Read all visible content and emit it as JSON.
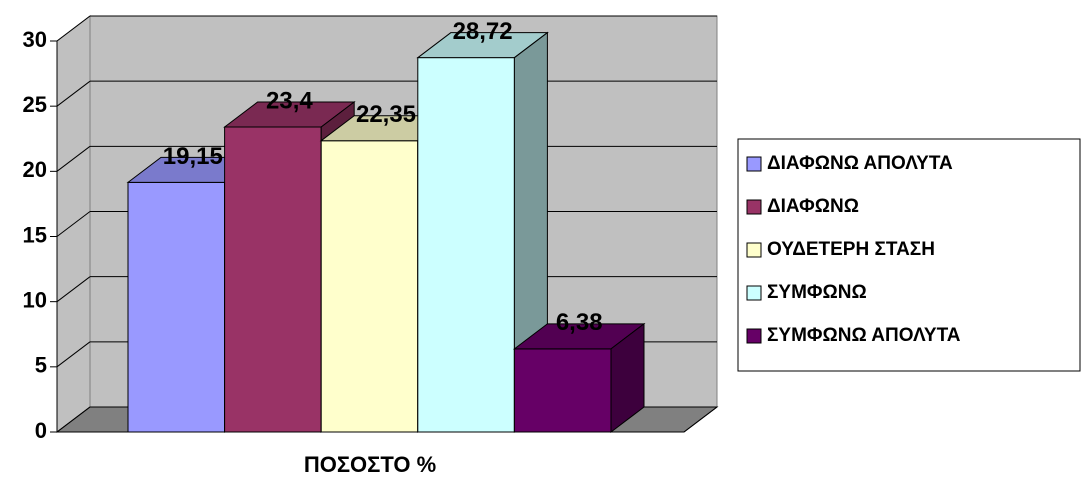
{
  "chart_data": {
    "type": "bar",
    "categories": [
      "ΠΟΣΟΣΤΟ %"
    ],
    "series": [
      {
        "name": "ΔΙΑΦΩΝΩ ΑΠΟΛΥΤΑ",
        "color": "#9999ff",
        "values": [
          19.15
        ],
        "value_labels": [
          "19,15"
        ]
      },
      {
        "name": "ΔΙΑΦΩΝΩ",
        "color": "#993366",
        "values": [
          23.4
        ],
        "value_labels": [
          "23,4"
        ]
      },
      {
        "name": "ΟΥΔΕΤΕΡΗ ΣΤΑΣΗ",
        "color": "#ffffcc",
        "values": [
          22.35
        ],
        "value_labels": [
          "22,35"
        ]
      },
      {
        "name": "ΣΥΜΦΩΝΩ",
        "color": "#ccffff",
        "values": [
          28.72
        ],
        "value_labels": [
          "28,72"
        ]
      },
      {
        "name": "ΣΥΜΦΩΝΩ ΑΠΟΛΥΤΑ",
        "color": "#660066",
        "values": [
          6.38
        ],
        "value_labels": [
          "6,38"
        ]
      }
    ],
    "ylim": [
      0,
      30
    ],
    "yticks": [
      0,
      5,
      10,
      15,
      20,
      25,
      30
    ],
    "grid": true,
    "legend": "right"
  }
}
